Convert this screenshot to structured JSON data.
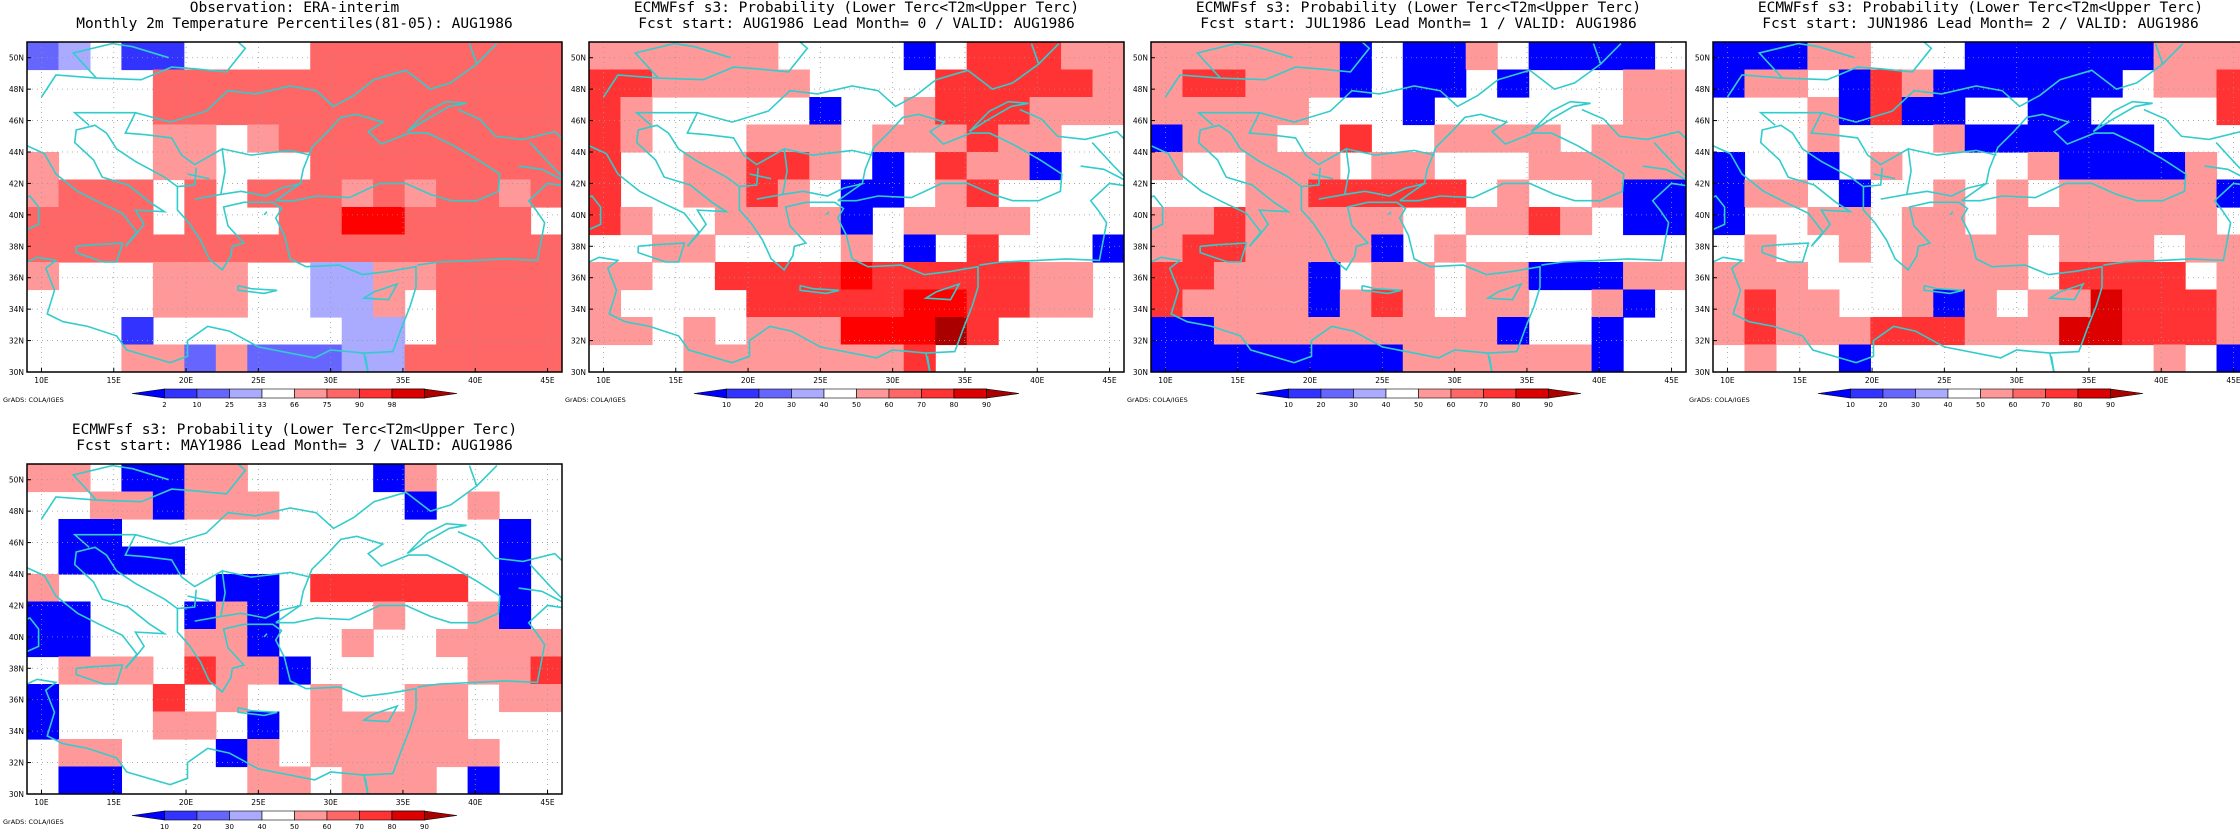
{
  "panels": [
    {
      "title_lines": [
        "Observation: ERA-interim",
        "Monthly 2m Temperature Percentiles(81-05): AUG1986"
      ],
      "colorbar_labels": [
        "2",
        "10",
        "25",
        "33",
        "66",
        "75",
        "90",
        "98"
      ],
      "grads_label": "GrADS: COLA/IGES",
      "grid": [
        "MW.BBAA..RRRRRRRR",
        "....RRRRRRRRRRRRR",
        "....RRRRRRRRRRRRR",
        "....LL.LRRRRRRRRR",
        "L...LL...RRRRRRRR",
        "LRRR.R.RRRLRLRRLR",
        "RRRR.R..RRDDRRRR.",
        "RRRRRRRRRRRRRRRRR",
        "L...LLL..WWLLRRRR",
        "....LLL..WWL.RRRR",
        "...B......WW.RRRR",
        "...LLMLMMMWWRRRRR"
      ],
      "colors": {
        "B": "#3333ff",
        "M": "#6666ff",
        "W": "#aaaaff",
        "L": "#ff9999",
        "R": "#ff6666",
        "D": "#ff0000",
        "X": "#aa0000"
      },
      "cbar_colors": [
        "#0000ff",
        "#3333ff",
        "#6666ff",
        "#aaaaff",
        "#ffffff",
        "#ff9999",
        "#ff6666",
        "#ff3333",
        "#dd0000"
      ]
    },
    {
      "title_lines": [
        "ECMWFsf s3: Probability (Lower Terc<T2m<Upper Terc)",
        "Fcst start: AUG1986  Lead Month= 0 / VALID: AUG1986"
      ],
      "colorbar_labels": [
        "10",
        "20",
        "30",
        "40",
        "50",
        "60",
        "70",
        "80",
        "90"
      ],
      "grads_label": "GrADS: COLA/IGES",
      "grid": [
        "LLLLLL....B.RRRLL",
        "RRLLLLL....RRRRRL",
        "RL.....B..LRRRLLL",
        "RL...LLL.LLLRLL..",
        "R..LLRRL.B.RLLB..",
        "R..LLRL.BB.LR....",
        "RL..LLLLB.LLLL...",
        "..LL....L.B.R...B",
        "LL..RRRRDRRRRRLL.",
        "L....RRRRRDDRRLL.",
        "LL.L.LLLDDDXR....",
        "...LLLLLLLR......"
      ],
      "colors": {
        "B": "#0000ff",
        "M": "#3333ff",
        "W": "#aaaaff",
        "L": "#ff9999",
        "R": "#ff3333",
        "D": "#ff0000",
        "X": "#aa0000"
      },
      "cbar_colors": [
        "#0000ff",
        "#3333ff",
        "#6666ff",
        "#aaaaff",
        "#ffffff",
        "#ff9999",
        "#ff6666",
        "#ff3333",
        "#dd0000"
      ]
    },
    {
      "title_lines": [
        "ECMWFsf s3: Probability (Lower Terc<T2m<Upper Terc)",
        "Fcst start: JUL1986  Lead Month= 1 / VALID: AUG1986"
      ],
      "colorbar_labels": [
        "10",
        "20",
        "30",
        "40",
        "50",
        "60",
        "70",
        "80",
        "90"
      ],
      "grads_label": "GrADS: COLA/IGES",
      "grid": [
        "LLLLLLB.BBL.BBBB.",
        "LRRLLLB.BB.B...LL",
        "LLLLL...B......LL",
        "BLLL..R..LLLL.LLL",
        "L..LLL.LL...LLLLL",
        "...LLRRRRR.L..LBB",
        "LLRLLLLL..LLRL.BB",
        "LRRLLLLB.L.......",
        "RRLLLB.LL.LLBBBLL",
        "RLLLLBLRL.LL..LB.",
        "BBLLLLLLLLLB..B..",
        "BBBBBBBBLLLLLLB.."
      ],
      "colors": {
        "B": "#0000ff",
        "M": "#3333ff",
        "W": "#aaaaff",
        "L": "#ff9999",
        "R": "#ff3333",
        "D": "#ff0000",
        "X": "#aa0000"
      },
      "cbar_colors": [
        "#0000ff",
        "#3333ff",
        "#6666ff",
        "#aaaaff",
        "#ffffff",
        "#ff9999",
        "#ff6666",
        "#ff3333",
        "#dd0000"
      ]
    },
    {
      "title_lines": [
        "ECMWFsf s3: Probability (Lower Terc<T2m<Upper Terc)",
        "Fcst start: JUN1986  Lead Month= 2 / VALID: AUG1986"
      ],
      "colorbar_labels": [
        "10",
        "20",
        "30",
        "40",
        "50",
        "60",
        "70",
        "80",
        "90"
      ],
      "grads_label": "GrADS: COLA/IGES",
      "grid": [
        "BBBLL...BBBBBBLLL",
        "BLL.BRLBBBBBB.LLR",
        "...LBRBB..BB....R",
        "...L...LBBBBBB...",
        "B..B.L....LBBBBL.",
        "BLL.B..L.L.LLLLLB",
        "B..LL.LL.LLLLLLL.",
        ".L..L.LLLL.LLL.LL",
        "LLL...LLLL.RRRR.L",
        "LRLL..LBL.LLDRRRL",
        "LRLLLRRRLLLDDRRRL",
        ".L..B.........L.B"
      ],
      "colors": {
        "B": "#0000ff",
        "M": "#3333ff",
        "W": "#aaaaff",
        "L": "#ff9999",
        "R": "#ff3333",
        "D": "#dd0000",
        "X": "#aa0000"
      },
      "cbar_colors": [
        "#0000ff",
        "#3333ff",
        "#6666ff",
        "#aaaaff",
        "#ffffff",
        "#ff9999",
        "#ff6666",
        "#ff3333",
        "#dd0000"
      ]
    },
    {
      "title_lines": [
        "ECMWFsf s3: Probability (Lower Terc<T2m<Upper Terc)",
        "Fcst start: MAY1986  Lead Month= 3 / VALID: AUG1986"
      ],
      "colorbar_labels": [
        "10",
        "20",
        "30",
        "40",
        "50",
        "60",
        "70",
        "80",
        "90"
      ],
      "grads_label": "GrADS: COLA/IGES",
      "grid": [
        "LL.BBLL....BL....",
        "..LLBLLL....B.L..",
        ".BB............B.",
        ".BBBB..........B.",
        "L.....BB.RRRRR.B.",
        "BB...BLB...L..LB.",
        "BB...LLB..L..LLLL",
        ".LLL.RLLB.....LLR",
        "B...R.L..L..LL.LL",
        "B...LL.B.LLLLL...",
        ".LL...BL.LLLLLL..",
        ".BB....LL.LLL.B.."
      ],
      "colors": {
        "B": "#0000ff",
        "M": "#3333ff",
        "W": "#aaaaff",
        "L": "#ff9999",
        "R": "#ff3333",
        "D": "#dd0000",
        "X": "#aa0000"
      },
      "cbar_colors": [
        "#0000ff",
        "#3333ff",
        "#6666ff",
        "#aaaaff",
        "#ffffff",
        "#ff9999",
        "#ff6666",
        "#ff3333",
        "#dd0000"
      ]
    }
  ],
  "lat_labels": [
    "50N",
    "48N",
    "46N",
    "44N",
    "42N",
    "40N",
    "38N",
    "36N",
    "34N",
    "32N",
    "30N"
  ],
  "lon_labels": [
    "10E",
    "15E",
    "20E",
    "25E",
    "30E",
    "35E",
    "40E",
    "45E"
  ],
  "coast_color": "#33cccc",
  "chart_data": [
    {
      "type": "heatmap",
      "title": "Observation: ERA-interim",
      "subtitle": "Monthly 2m Temperature Percentiles(81-05): AUG1986",
      "x_ticks": [
        "10E",
        "15E",
        "20E",
        "25E",
        "30E",
        "35E",
        "40E",
        "45E"
      ],
      "y_ticks": [
        "30N",
        "32N",
        "34N",
        "36N",
        "38N",
        "40N",
        "42N",
        "44N",
        "46N",
        "48N",
        "50N"
      ],
      "colorbar": [
        "2",
        "10",
        "25",
        "33",
        "66",
        "75",
        "90",
        "98"
      ]
    },
    {
      "type": "heatmap",
      "title": "ECMWFsf s3: Probability (Lower Terc<T2m<Upper Terc)",
      "subtitle": "Fcst start: AUG1986  Lead Month= 0 / VALID: AUG1986",
      "colorbar": [
        "10",
        "20",
        "30",
        "40",
        "50",
        "60",
        "70",
        "80",
        "90"
      ]
    },
    {
      "type": "heatmap",
      "title": "ECMWFsf s3: Probability (Lower Terc<T2m<Upper Terc)",
      "subtitle": "Fcst start: JUL1986  Lead Month= 1 / VALID: AUG1986",
      "colorbar": [
        "10",
        "20",
        "30",
        "40",
        "50",
        "60",
        "70",
        "80",
        "90"
      ]
    },
    {
      "type": "heatmap",
      "title": "ECMWFsf s3: Probability (Lower Terc<T2m<Upper Terc)",
      "subtitle": "Fcst start: JUN1986  Lead Month= 2 / VALID: AUG1986",
      "colorbar": [
        "10",
        "20",
        "30",
        "40",
        "50",
        "60",
        "70",
        "80",
        "90"
      ]
    },
    {
      "type": "heatmap",
      "title": "ECMWFsf s3: Probability (Lower Terc<T2m<Upper Terc)",
      "subtitle": "Fcst start: MAY1986  Lead Month= 3 / VALID: AUG1986",
      "colorbar": [
        "10",
        "20",
        "30",
        "40",
        "50",
        "60",
        "70",
        "80",
        "90"
      ]
    }
  ]
}
